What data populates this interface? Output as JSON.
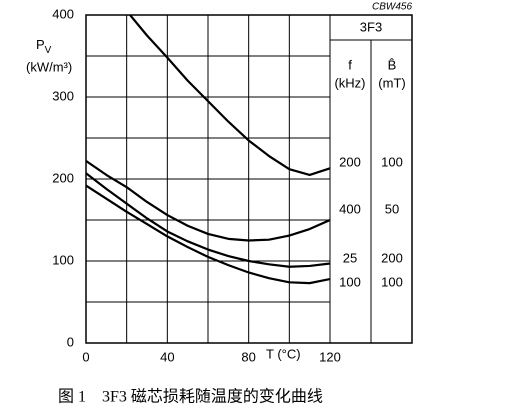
{
  "chart_data": {
    "type": "line",
    "code": "CBW456",
    "ylabel": {
      "symbol": "P",
      "subscript": "V",
      "unit": "(kW/m³)"
    },
    "xlabel": "T (°C)",
    "x": [
      0,
      10,
      20,
      30,
      40,
      50,
      60,
      70,
      80,
      90,
      100,
      110,
      120
    ],
    "xlim": [
      0,
      120
    ],
    "xticks": [
      0,
      40,
      80,
      120
    ],
    "xgrid": [
      20,
      60,
      100
    ],
    "ylim": [
      0,
      400
    ],
    "yticks": [
      0,
      100,
      200,
      300,
      400
    ],
    "ygrid": [
      50,
      150,
      250,
      350
    ],
    "color": "#000000",
    "table": {
      "header": "3F3",
      "columns": [
        {
          "symbol": "f",
          "unit": "(kHz)"
        },
        {
          "symbol": "B̂",
          "unit": "(mT)"
        }
      ]
    },
    "series": [
      {
        "f": 200,
        "B": 100,
        "values": [
          null,
          null,
          405,
          375,
          348,
          320,
          295,
          270,
          247,
          228,
          212,
          205,
          213
        ]
      },
      {
        "f": 400,
        "B": 50,
        "values": [
          222,
          205,
          190,
          172,
          156,
          143,
          133,
          127,
          125,
          126,
          131,
          139,
          150
        ]
      },
      {
        "f": 25,
        "B": 200,
        "values": [
          207,
          188,
          170,
          152,
          136,
          124,
          114,
          106,
          100,
          96,
          93,
          94,
          97
        ]
      },
      {
        "f": 100,
        "B": 100,
        "values": [
          192,
          176,
          160,
          145,
          130,
          117,
          105,
          95,
          86,
          79,
          74,
          73,
          78
        ]
      }
    ],
    "caption": "图 1　3F3 磁芯损耗随温度的变化曲线"
  }
}
